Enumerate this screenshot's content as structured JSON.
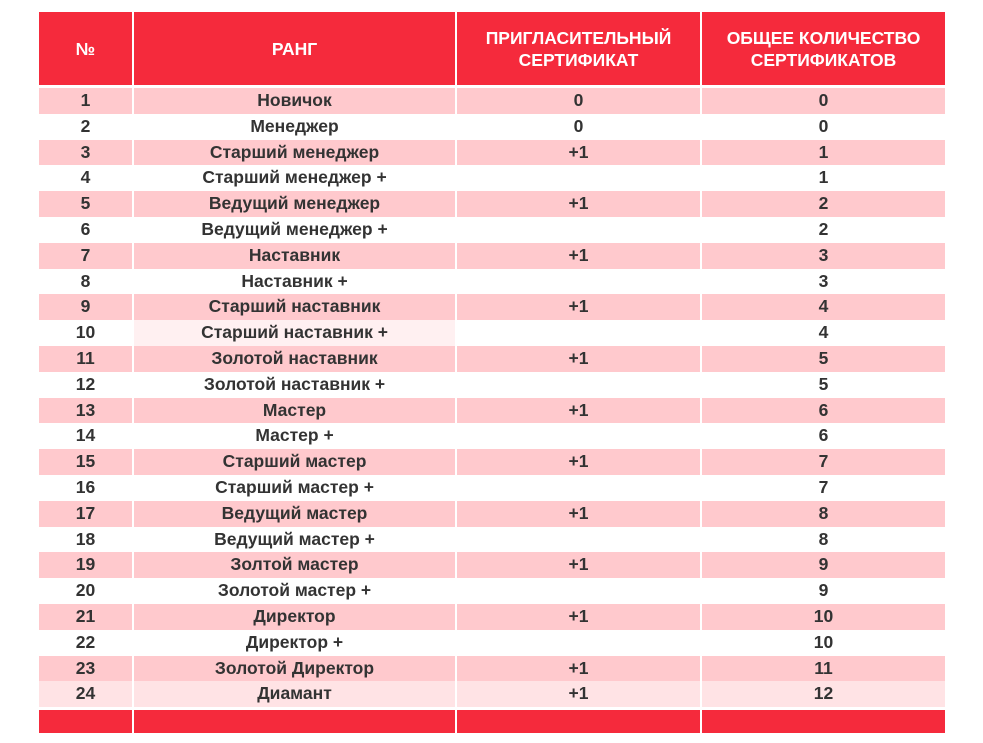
{
  "headers": {
    "num": "№",
    "rank": "РАНГ",
    "invite": "ПРИГЛАСИТЕЛЬНЫЙ СЕРТИФИКАТ",
    "total": "ОБЩЕЕ КОЛИЧЕСТВО СЕРТИФИКАТОВ"
  },
  "rows": [
    {
      "num": "1",
      "rank": "Новичок",
      "invite": "0",
      "total": "0"
    },
    {
      "num": "2",
      "rank": "Менеджер",
      "invite": "0",
      "total": "0"
    },
    {
      "num": "3",
      "rank": "Старший  менеджер",
      "invite": "+1",
      "total": "1"
    },
    {
      "num": "4",
      "rank": "Старший  менеджер +",
      "invite": "",
      "total": "1"
    },
    {
      "num": "5",
      "rank": "Ведущий менеджер",
      "invite": "+1",
      "total": "2"
    },
    {
      "num": "6",
      "rank": "Ведущий менеджер +",
      "invite": "",
      "total": "2"
    },
    {
      "num": "7",
      "rank": "Наставник",
      "invite": "+1",
      "total": "3"
    },
    {
      "num": "8",
      "rank": "Наставник +",
      "invite": "",
      "total": "3"
    },
    {
      "num": "9",
      "rank": "Старший наставник",
      "invite": "+1",
      "total": "4"
    },
    {
      "num": "10",
      "rank": "Старший наставник +",
      "invite": "",
      "total": "4"
    },
    {
      "num": "11",
      "rank": "Золотой наставник",
      "invite": "+1",
      "total": "5"
    },
    {
      "num": "12",
      "rank": "Золотой наставник +",
      "invite": "",
      "total": "5"
    },
    {
      "num": "13",
      "rank": "Мастер",
      "invite": "+1",
      "total": "6"
    },
    {
      "num": "14",
      "rank": "Мастер +",
      "invite": "",
      "total": "6"
    },
    {
      "num": "15",
      "rank": "Старший мастер",
      "invite": "+1",
      "total": "7"
    },
    {
      "num": "16",
      "rank": "Старший мастер +",
      "invite": "",
      "total": "7"
    },
    {
      "num": "17",
      "rank": "Ведущий мастер",
      "invite": "+1",
      "total": "8"
    },
    {
      "num": "18",
      "rank": "Ведущий мастер +",
      "invite": "",
      "total": "8"
    },
    {
      "num": "19",
      "rank": "Золтой мастер",
      "invite": "+1",
      "total": "9"
    },
    {
      "num": "20",
      "rank": "Золотой мастер +",
      "invite": "",
      "total": "9"
    },
    {
      "num": "21",
      "rank": "Директор",
      "invite": "+1",
      "total": "10"
    },
    {
      "num": "22",
      "rank": "Директор +",
      "invite": "",
      "total": "10"
    },
    {
      "num": "23",
      "rank": "Золотой Директор",
      "invite": "+1",
      "total": "11"
    },
    {
      "num": "24",
      "rank": "Диамант",
      "invite": "+1",
      "total": "12"
    }
  ],
  "colors": {
    "header": "#f52a3c",
    "stripe": "#ffc9cd",
    "text": "#333333"
  }
}
